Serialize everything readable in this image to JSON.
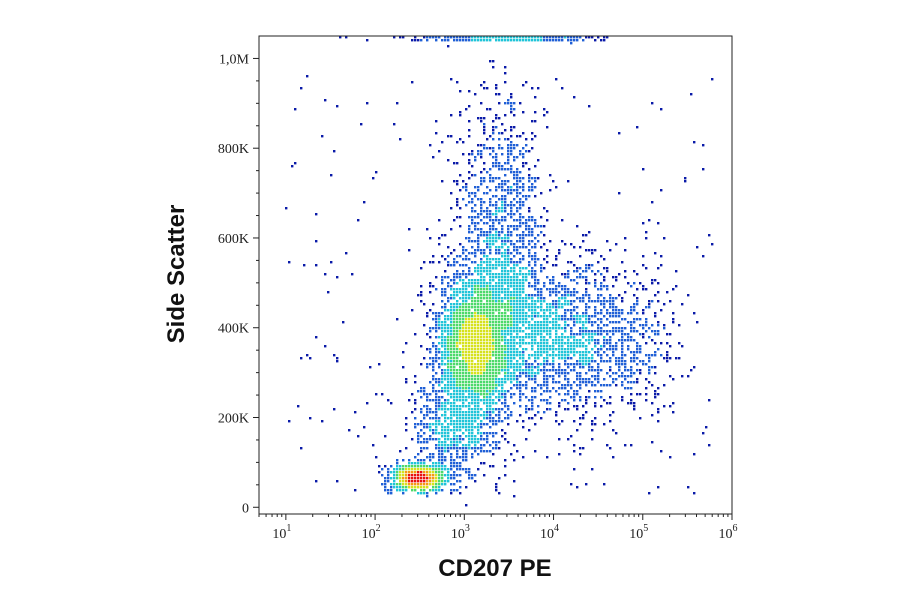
{
  "chart_data": {
    "type": "scatter",
    "subtype": "flow-cytometry-density-dot-plot",
    "title": "",
    "xlabel": "CD207 PE",
    "ylabel": "Side Scatter",
    "x_scale": "log",
    "xlim": [
      5,
      1000000
    ],
    "ylim": [
      -15000,
      1050000
    ],
    "x_ticks": [
      {
        "base": "10",
        "exp": "1",
        "value": 10
      },
      {
        "base": "10",
        "exp": "2",
        "value": 100
      },
      {
        "base": "10",
        "exp": "3",
        "value": 1000
      },
      {
        "base": "10",
        "exp": "4",
        "value": 10000
      },
      {
        "base": "10",
        "exp": "5",
        "value": 100000
      },
      {
        "base": "10",
        "exp": "6",
        "value": 1000000
      }
    ],
    "y_ticks": [
      {
        "label": "0",
        "value": 0
      },
      {
        "label": "200K",
        "value": 200000
      },
      {
        "label": "400K",
        "value": 400000
      },
      {
        "label": "600K",
        "value": 600000
      },
      {
        "label": "800K",
        "value": 800000
      },
      {
        "label": "1,0M",
        "value": 1000000
      }
    ],
    "grid": false,
    "legend": "none",
    "density_colors": [
      "#0a1aa8",
      "#1f5fd6",
      "#1fc4d8",
      "#4cd96a",
      "#d6e21c",
      "#f59a14",
      "#e81010"
    ],
    "populations": [
      {
        "name_hidden": true,
        "x_center": 300,
        "y_center": 65000,
        "log_x_spread": 0.16,
        "y_spread": 14000,
        "count": 900
      },
      {
        "name_hidden": true,
        "x_center": 1300,
        "y_center": 360000,
        "log_x_spread": 0.22,
        "y_spread": 75000,
        "count": 2400
      },
      {
        "name_hidden": true,
        "x_center": 2500,
        "y_center": 560000,
        "log_x_spread": 0.25,
        "y_spread": 170000,
        "count": 1500
      },
      {
        "name_hidden": true,
        "x_center": 9000,
        "y_center": 380000,
        "log_x_spread": 0.45,
        "y_spread": 90000,
        "count": 1700
      },
      {
        "name_hidden": true,
        "x_center": 60000,
        "y_center": 380000,
        "log_x_spread": 0.35,
        "y_spread": 90000,
        "count": 400
      },
      {
        "name_hidden": true,
        "x_center": 800,
        "y_center": 180000,
        "log_x_spread": 0.25,
        "y_spread": 60000,
        "count": 700
      },
      {
        "name_hidden": true,
        "x_center": 3000,
        "y_center": 1045000,
        "log_x_spread": 0.5,
        "y_spread": 3000,
        "count": 350
      }
    ]
  }
}
